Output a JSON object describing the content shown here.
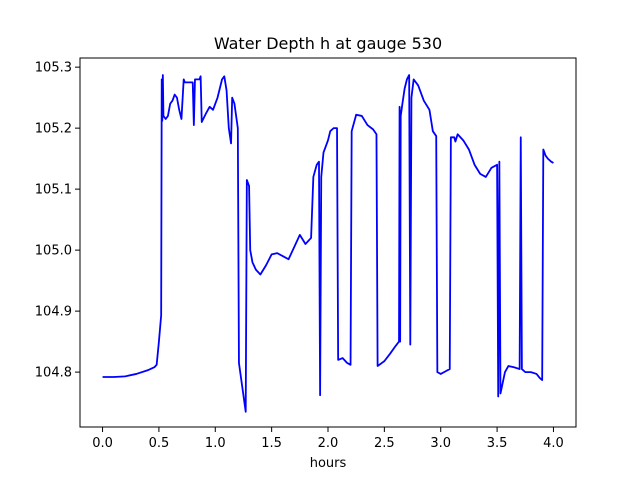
{
  "chart_data": {
    "type": "line",
    "title": "Water Depth h at gauge 530",
    "xlabel": "hours",
    "ylabel": "",
    "xlim": [
      -0.2,
      4.2
    ],
    "ylim": [
      104.71,
      105.315
    ],
    "xticks": [
      0.0,
      0.5,
      1.0,
      1.5,
      2.0,
      2.5,
      3.0,
      3.5,
      4.0
    ],
    "xtick_labels": [
      "0.0",
      "0.5",
      "1.0",
      "1.5",
      "2.0",
      "2.5",
      "3.0",
      "3.5",
      "4.0"
    ],
    "yticks": [
      104.8,
      104.9,
      105.0,
      105.1,
      105.2,
      105.3
    ],
    "ytick_labels": [
      "104.8",
      "104.9",
      "105.0",
      "105.1",
      "105.2",
      "105.3"
    ],
    "grid": false,
    "series": [
      {
        "color": "#0000ff",
        "points": [
          [
            0.0,
            104.792
          ],
          [
            0.1,
            104.792
          ],
          [
            0.2,
            104.793
          ],
          [
            0.3,
            104.797
          ],
          [
            0.4,
            104.803
          ],
          [
            0.46,
            104.808
          ],
          [
            0.48,
            104.812
          ],
          [
            0.5,
            104.85
          ],
          [
            0.52,
            104.893
          ],
          [
            0.525,
            105.28
          ],
          [
            0.53,
            105.212
          ],
          [
            0.535,
            105.287
          ],
          [
            0.54,
            105.22
          ],
          [
            0.56,
            105.215
          ],
          [
            0.58,
            105.22
          ],
          [
            0.6,
            105.24
          ],
          [
            0.62,
            105.245
          ],
          [
            0.64,
            105.255
          ],
          [
            0.66,
            105.25
          ],
          [
            0.68,
            105.23
          ],
          [
            0.7,
            105.215
          ],
          [
            0.72,
            105.28
          ],
          [
            0.73,
            105.275
          ],
          [
            0.75,
            105.275
          ],
          [
            0.77,
            105.275
          ],
          [
            0.8,
            105.275
          ],
          [
            0.81,
            105.205
          ],
          [
            0.82,
            105.28
          ],
          [
            0.86,
            105.28
          ],
          [
            0.87,
            105.285
          ],
          [
            0.88,
            105.21
          ],
          [
            0.92,
            105.225
          ],
          [
            0.95,
            105.235
          ],
          [
            0.98,
            105.23
          ],
          [
            1.02,
            105.25
          ],
          [
            1.06,
            105.28
          ],
          [
            1.08,
            105.285
          ],
          [
            1.1,
            105.262
          ],
          [
            1.12,
            105.2
          ],
          [
            1.14,
            105.175
          ],
          [
            1.15,
            105.25
          ],
          [
            1.17,
            105.24
          ],
          [
            1.2,
            105.2
          ],
          [
            1.21,
            104.815
          ],
          [
            1.27,
            104.735
          ],
          [
            1.28,
            105.115
          ],
          [
            1.3,
            105.105
          ],
          [
            1.31,
            105.0
          ],
          [
            1.33,
            104.98
          ],
          [
            1.36,
            104.968
          ],
          [
            1.4,
            104.96
          ],
          [
            1.45,
            104.975
          ],
          [
            1.5,
            104.993
          ],
          [
            1.55,
            104.995
          ],
          [
            1.6,
            104.99
          ],
          [
            1.65,
            104.985
          ],
          [
            1.7,
            105.005
          ],
          [
            1.75,
            105.025
          ],
          [
            1.8,
            105.01
          ],
          [
            1.85,
            105.02
          ],
          [
            1.87,
            105.12
          ],
          [
            1.9,
            105.14
          ],
          [
            1.92,
            105.145
          ],
          [
            1.93,
            104.762
          ],
          [
            1.94,
            105.12
          ],
          [
            1.96,
            105.16
          ],
          [
            2.0,
            105.18
          ],
          [
            2.02,
            105.195
          ],
          [
            2.05,
            105.2
          ],
          [
            2.08,
            105.2
          ],
          [
            2.09,
            104.82
          ],
          [
            2.13,
            104.823
          ],
          [
            2.17,
            104.815
          ],
          [
            2.2,
            104.812
          ],
          [
            2.21,
            105.195
          ],
          [
            2.25,
            105.222
          ],
          [
            2.3,
            105.22
          ],
          [
            2.35,
            105.205
          ],
          [
            2.4,
            105.198
          ],
          [
            2.43,
            105.19
          ],
          [
            2.44,
            104.81
          ],
          [
            2.5,
            104.818
          ],
          [
            2.55,
            104.83
          ],
          [
            2.6,
            104.843
          ],
          [
            2.63,
            104.85
          ],
          [
            2.635,
            105.235
          ],
          [
            2.64,
            104.85
          ],
          [
            2.645,
            105.22
          ],
          [
            2.66,
            105.24
          ],
          [
            2.68,
            105.265
          ],
          [
            2.7,
            105.28
          ],
          [
            2.72,
            105.287
          ],
          [
            2.73,
            104.845
          ],
          [
            2.74,
            105.25
          ],
          [
            2.76,
            105.28
          ],
          [
            2.8,
            105.27
          ],
          [
            2.85,
            105.245
          ],
          [
            2.9,
            105.23
          ],
          [
            2.93,
            105.195
          ],
          [
            2.96,
            105.187
          ],
          [
            2.97,
            104.8
          ],
          [
            3.0,
            104.797
          ],
          [
            3.05,
            104.802
          ],
          [
            3.08,
            104.805
          ],
          [
            3.09,
            105.185
          ],
          [
            3.12,
            105.185
          ],
          [
            3.13,
            105.178
          ],
          [
            3.15,
            105.19
          ],
          [
            3.2,
            105.18
          ],
          [
            3.25,
            105.165
          ],
          [
            3.3,
            105.14
          ],
          [
            3.35,
            105.125
          ],
          [
            3.4,
            105.12
          ],
          [
            3.45,
            105.135
          ],
          [
            3.5,
            105.14
          ],
          [
            3.51,
            104.76
          ],
          [
            3.52,
            105.145
          ],
          [
            3.53,
            104.765
          ],
          [
            3.57,
            104.8
          ],
          [
            3.6,
            104.81
          ],
          [
            3.65,
            104.808
          ],
          [
            3.7,
            104.805
          ],
          [
            3.71,
            105.185
          ],
          [
            3.72,
            104.805
          ],
          [
            3.75,
            104.8
          ],
          [
            3.8,
            104.8
          ],
          [
            3.85,
            104.797
          ],
          [
            3.88,
            104.79
          ],
          [
            3.9,
            104.787
          ],
          [
            3.91,
            105.165
          ],
          [
            3.93,
            105.155
          ],
          [
            3.95,
            105.15
          ],
          [
            3.98,
            105.145
          ],
          [
            4.0,
            105.143
          ]
        ]
      }
    ]
  }
}
